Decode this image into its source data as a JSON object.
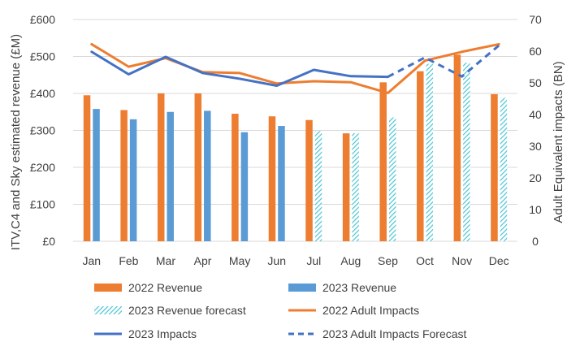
{
  "chart_data": {
    "type": "bar",
    "categories": [
      "Jan",
      "Feb",
      "Mar",
      "Apr",
      "May",
      "Jun",
      "Jul",
      "Aug",
      "Sep",
      "Oct",
      "Nov",
      "Dec"
    ],
    "ylabel": "ITV,C4 and Sky estimated revenue (£M)",
    "y2label": "Adult Equivalent  impacts (BN)",
    "ylim": [
      0,
      600
    ],
    "y2lim": [
      0,
      70
    ],
    "yticks": [
      "£0",
      "£100",
      "£200",
      "£300",
      "£400",
      "£500",
      "£600"
    ],
    "y2ticks": [
      "0",
      "10",
      "20",
      "30",
      "40",
      "50",
      "60",
      "70"
    ],
    "grid": true,
    "legend_position": "bottom",
    "series": [
      {
        "name": "2022 Revenue",
        "kind": "bar",
        "axis": "left",
        "color": "#ED7D31",
        "values": [
          395,
          355,
          400,
          400,
          345,
          338,
          328,
          292,
          430,
          460,
          505,
          398
        ]
      },
      {
        "name": "2023 Revenue",
        "kind": "bar",
        "axis": "left",
        "color": "#5B9BD5",
        "values": [
          358,
          330,
          350,
          353,
          295,
          312,
          null,
          null,
          null,
          null,
          null,
          null
        ]
      },
      {
        "name": "2023 Revenue forecast",
        "kind": "bar-hatched",
        "axis": "left",
        "color": "#4BC4D4",
        "values": [
          null,
          null,
          null,
          null,
          null,
          null,
          298,
          292,
          335,
          480,
          483,
          388
        ]
      },
      {
        "name": "2022 Adult Impacts",
        "kind": "line",
        "axis": "right",
        "color": "#ED7D31",
        "values": [
          62.2,
          55.1,
          57.8,
          53.4,
          53.1,
          49.8,
          50.5,
          50.2,
          46.8,
          57.0,
          59.8,
          62.2
        ]
      },
      {
        "name": "2023 Impacts",
        "kind": "line",
        "axis": "right",
        "color": "#4472C4",
        "values": [
          59.8,
          52.7,
          58.2,
          53.1,
          51.3,
          49.1,
          54.1,
          52.1,
          51.9,
          null,
          null,
          null
        ]
      },
      {
        "name": "2023 Adult Impacts Forecast",
        "kind": "line-dashed",
        "axis": "right",
        "color": "#4472C4",
        "values": [
          null,
          null,
          null,
          null,
          null,
          null,
          null,
          null,
          51.9,
          58.0,
          52.0,
          61.8
        ]
      }
    ]
  }
}
